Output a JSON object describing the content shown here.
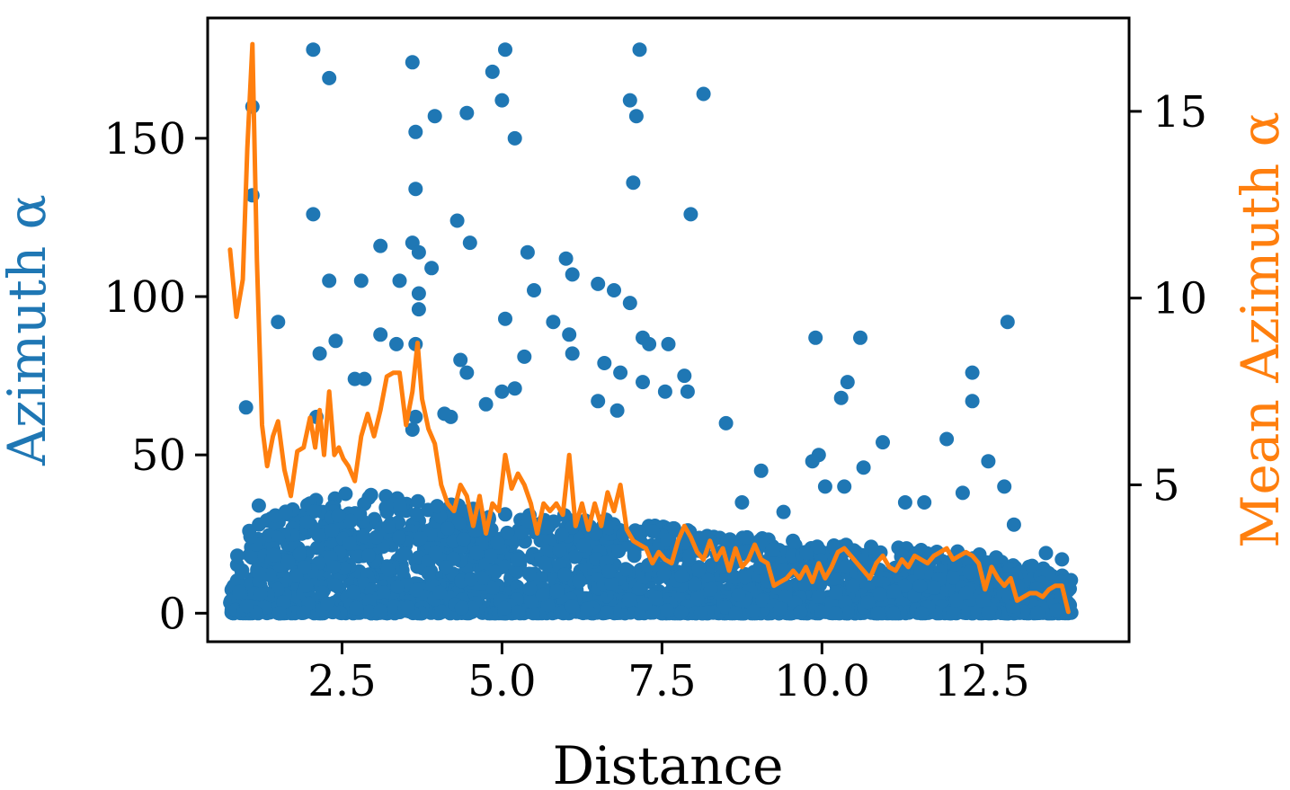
{
  "chart_data": {
    "type": "scatter",
    "xlabel": "Distance",
    "ylabel_left": "Azimuth α",
    "ylabel_right": "Mean Azimuth α",
    "xlim": [
      0.4,
      14.8
    ],
    "ylim_left": [
      -9,
      188
    ],
    "ylim_right": [
      0.8,
      17.5
    ],
    "xticks": [
      2.5,
      5.0,
      7.5,
      10.0,
      12.5
    ],
    "xtick_labels": [
      "2.5",
      "5.0",
      "7.5",
      "10.0",
      "12.5"
    ],
    "yticks_left": [
      0,
      50,
      100,
      150
    ],
    "ytick_labels_left": [
      "0",
      "50",
      "100",
      "150"
    ],
    "yticks_right": [
      5,
      10,
      15
    ],
    "ytick_labels_right": [
      "5",
      "10",
      "15"
    ],
    "colors": {
      "scatter": "#1f77b4",
      "line": "#ff7f0e"
    },
    "series": [
      {
        "name": "Azimuth α",
        "type": "scatter",
        "axis": "left",
        "x": [
          2.05,
          5.05,
          7.15,
          3.6,
          2.3,
          4.85,
          8.15,
          1.1,
          5.0,
          7.0,
          3.95,
          7.1,
          4.45,
          3.65,
          5.2,
          7.05,
          3.65,
          1.1,
          2.05,
          7.95,
          4.3,
          4.5,
          3.6,
          3.7,
          3.1,
          6.0,
          5.4,
          3.9,
          6.1,
          2.3,
          2.8,
          3.4,
          6.5,
          6.75,
          3.7,
          5.5,
          7.0,
          3.7,
          1.5,
          5.05,
          5.8,
          6.05,
          7.2,
          9.9,
          10.6,
          3.1,
          2.4,
          3.35,
          3.65,
          2.15,
          5.35,
          7.3,
          7.6,
          4.35,
          6.1,
          6.6,
          4.45,
          6.85,
          7.85,
          2.85,
          2.7,
          10.4,
          7.2,
          7.55,
          7.9,
          10.3,
          4.2,
          4.1,
          6.5,
          4.75,
          5.0,
          2.1,
          5.2,
          3.65,
          6.8,
          3.6,
          12.35,
          1.0,
          8.5,
          10.95,
          11.95,
          12.9,
          9.95,
          10.65,
          12.35,
          9.05,
          9.85,
          10.05,
          12.6,
          12.85,
          12.2,
          11.3,
          11.6,
          13.0,
          10.35,
          1.2,
          8.75,
          9.4,
          1.05,
          13.5,
          13.75
        ],
        "y": [
          178,
          178,
          178,
          174,
          169,
          171,
          164,
          160,
          162,
          162,
          157,
          157,
          158,
          152,
          150,
          136,
          134,
          132,
          126,
          126,
          124,
          117,
          117,
          114,
          116,
          112,
          114,
          109,
          107,
          105,
          105,
          105,
          104,
          102,
          101,
          102,
          98,
          96,
          92,
          93,
          92,
          88,
          87,
          87,
          87,
          88,
          86,
          85,
          85,
          82,
          81,
          85,
          85,
          80,
          82,
          79,
          76,
          76,
          75,
          74,
          74,
          73,
          73,
          70,
          70,
          68,
          62,
          63,
          67,
          66,
          70,
          62,
          71,
          62,
          64,
          58,
          67,
          65,
          60,
          54,
          55,
          92,
          50,
          46,
          76,
          45,
          48,
          40,
          48,
          40,
          38,
          35,
          35,
          28,
          40,
          34,
          35,
          32,
          26,
          19,
          17
        ]
      },
      {
        "name": "Mean Azimuth α",
        "type": "line",
        "axis": "right",
        "x": [
          0.75,
          0.85,
          0.95,
          1.02,
          1.1,
          1.17,
          1.25,
          1.33,
          1.42,
          1.5,
          1.6,
          1.7,
          1.8,
          1.9,
          2.0,
          2.08,
          2.15,
          2.22,
          2.3,
          2.38,
          2.45,
          2.52,
          2.6,
          2.7,
          2.8,
          2.9,
          3.0,
          3.1,
          3.2,
          3.3,
          3.4,
          3.5,
          3.6,
          3.68,
          3.75,
          3.85,
          3.95,
          4.05,
          4.15,
          4.25,
          4.35,
          4.45,
          4.55,
          4.65,
          4.75,
          4.85,
          4.95,
          5.05,
          5.15,
          5.25,
          5.35,
          5.45,
          5.55,
          5.65,
          5.75,
          5.85,
          5.95,
          6.05,
          6.15,
          6.25,
          6.35,
          6.45,
          6.55,
          6.65,
          6.75,
          6.85,
          6.95,
          7.05,
          7.15,
          7.25,
          7.35,
          7.45,
          7.55,
          7.65,
          7.75,
          7.85,
          7.95,
          8.05,
          8.15,
          8.25,
          8.35,
          8.45,
          8.55,
          8.65,
          8.75,
          8.85,
          8.95,
          9.05,
          9.15,
          9.25,
          9.35,
          9.45,
          9.55,
          9.65,
          9.75,
          9.85,
          9.95,
          10.05,
          10.15,
          10.25,
          10.35,
          10.45,
          10.55,
          10.65,
          10.75,
          10.85,
          10.95,
          11.05,
          11.15,
          11.25,
          11.35,
          11.45,
          11.55,
          11.65,
          11.75,
          11.85,
          11.95,
          12.05,
          12.15,
          12.25,
          12.35,
          12.45,
          12.55,
          12.65,
          12.75,
          12.85,
          12.95,
          13.05,
          13.15,
          13.25,
          13.35,
          13.45,
          13.55,
          13.65,
          13.75,
          13.85
        ],
        "y": [
          11.3,
          9.5,
          10.5,
          14.0,
          16.8,
          11.0,
          6.6,
          5.5,
          6.3,
          6.7,
          5.4,
          4.7,
          5.9,
          6.0,
          6.8,
          6.0,
          7.0,
          5.8,
          7.5,
          5.8,
          6.0,
          5.7,
          5.5,
          5.1,
          6.3,
          6.9,
          6.3,
          7.0,
          7.9,
          8.0,
          8.0,
          6.6,
          7.5,
          8.8,
          7.3,
          6.5,
          6.1,
          5.0,
          4.5,
          4.3,
          5.0,
          4.7,
          3.9,
          4.7,
          3.7,
          4.5,
          4.3,
          5.8,
          4.9,
          5.3,
          5.0,
          4.5,
          3.7,
          4.5,
          4.3,
          4.5,
          4.2,
          5.8,
          3.9,
          4.5,
          3.8,
          4.5,
          3.9,
          4.8,
          4.3,
          5.0,
          3.8,
          3.5,
          3.4,
          3.3,
          2.9,
          3.2,
          3.0,
          2.9,
          3.5,
          3.9,
          3.6,
          3.2,
          3.0,
          3.5,
          3.0,
          3.3,
          2.7,
          3.3,
          2.8,
          3.0,
          3.4,
          3.0,
          2.9,
          2.3,
          2.4,
          2.5,
          2.7,
          2.5,
          2.8,
          2.4,
          2.9,
          2.5,
          2.8,
          3.2,
          3.3,
          3.1,
          2.9,
          2.7,
          2.5,
          2.9,
          3.1,
          2.8,
          2.7,
          3.0,
          2.8,
          3.1,
          3.0,
          2.9,
          3.1,
          3.2,
          3.3,
          3.0,
          3.1,
          3.2,
          3.1,
          2.9,
          2.2,
          2.8,
          2.5,
          2.3,
          2.5,
          1.9,
          2.0,
          2.1,
          2.1,
          2.0,
          2.2,
          2.3,
          2.3,
          1.6
        ]
      }
    ],
    "dense_band": {
      "description_values": "dense scatter of points between Azimuth 0 and ~25 across the full distance range",
      "x_range": [
        0.75,
        13.9
      ],
      "upper_envelope": [
        [
          0.75,
          18
        ],
        [
          1.2,
          28
        ],
        [
          1.6,
          34
        ],
        [
          2.2,
          38
        ],
        [
          2.8,
          38
        ],
        [
          3.4,
          37
        ],
        [
          4.0,
          35
        ],
        [
          5.0,
          33
        ],
        [
          6.0,
          31
        ],
        [
          7.0,
          29
        ],
        [
          8.0,
          26
        ],
        [
          9.0,
          24
        ],
        [
          10.0,
          22
        ],
        [
          11.0,
          21
        ],
        [
          12.0,
          20
        ],
        [
          13.0,
          17
        ],
        [
          13.9,
          12
        ]
      ]
    }
  }
}
